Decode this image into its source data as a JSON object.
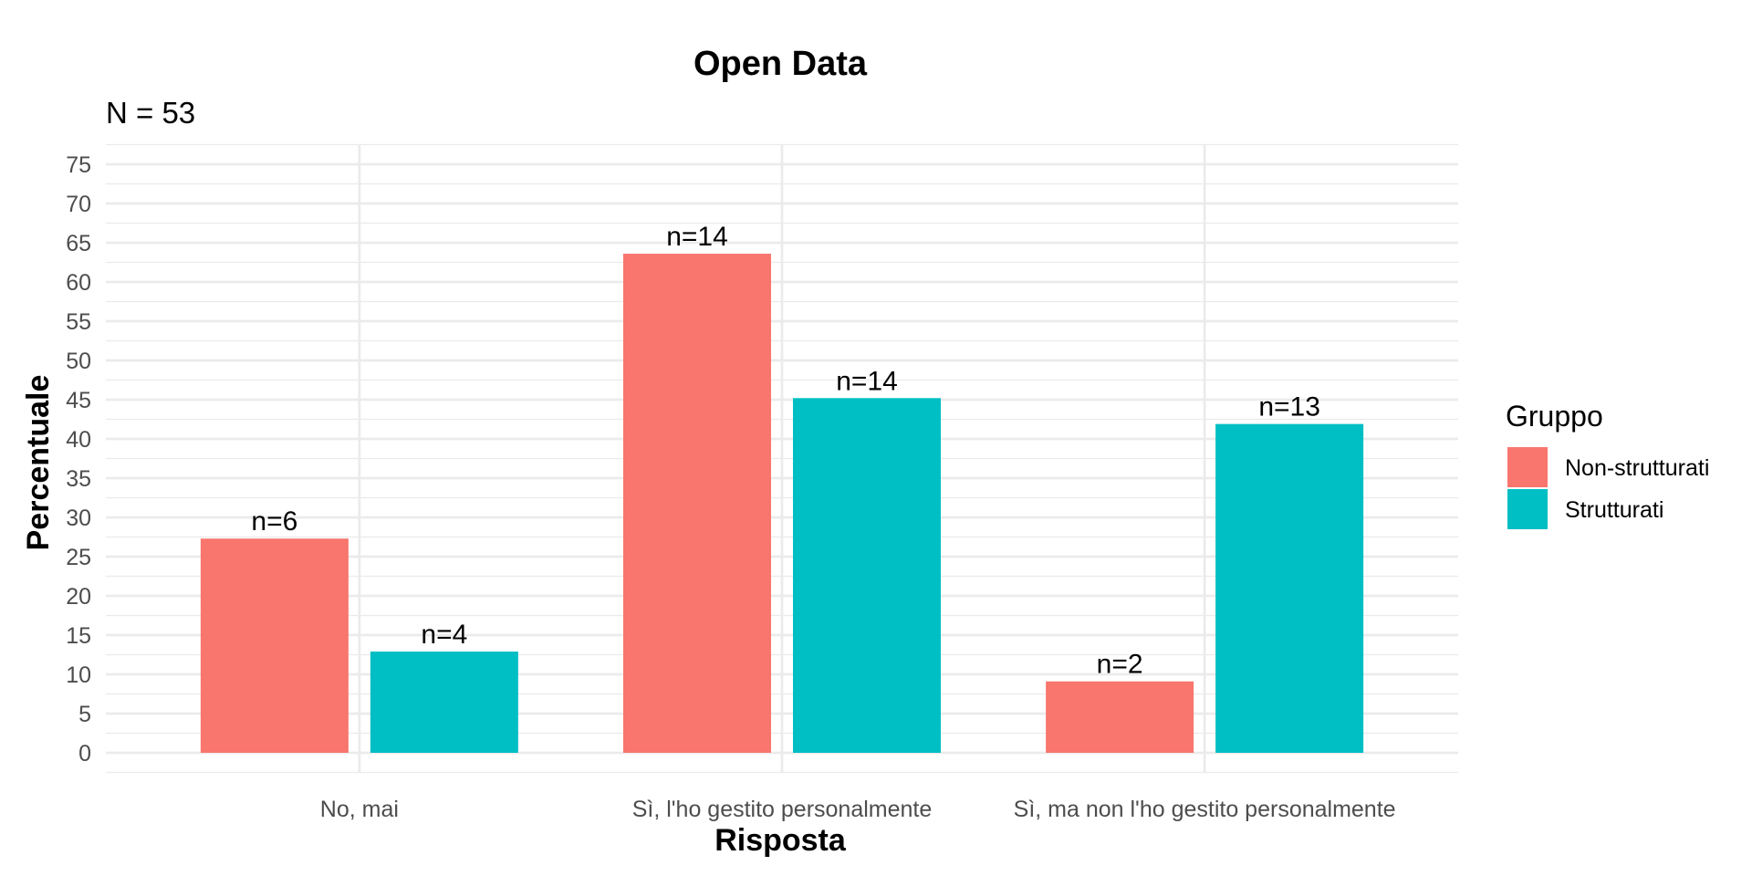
{
  "chart_data": {
    "type": "bar",
    "title": "Open Data",
    "subtitle": "N = 53",
    "xlabel": "Risposta",
    "ylabel": "Percentuale",
    "ylim": [
      0,
      75
    ],
    "yticks": [
      0,
      5,
      10,
      15,
      20,
      25,
      30,
      35,
      40,
      45,
      50,
      55,
      60,
      65,
      70,
      75
    ],
    "grid": true,
    "legend_position": "right",
    "legend_title": "Gruppo",
    "categories": [
      "No, mai",
      "Sì, l'ho gestito personalmente",
      "Sì, ma non l'ho gestito personalmente"
    ],
    "series": [
      {
        "name": "Non-strutturati",
        "color": "#F8766D",
        "values": [
          27.3,
          63.6,
          9.1
        ],
        "labels": [
          "n=6",
          "n=14",
          "n=2"
        ]
      },
      {
        "name": "Strutturati",
        "color": "#00BFC4",
        "values": [
          12.9,
          45.2,
          41.9
        ],
        "labels": [
          "n=4",
          "n=14",
          "n=13"
        ]
      }
    ]
  }
}
